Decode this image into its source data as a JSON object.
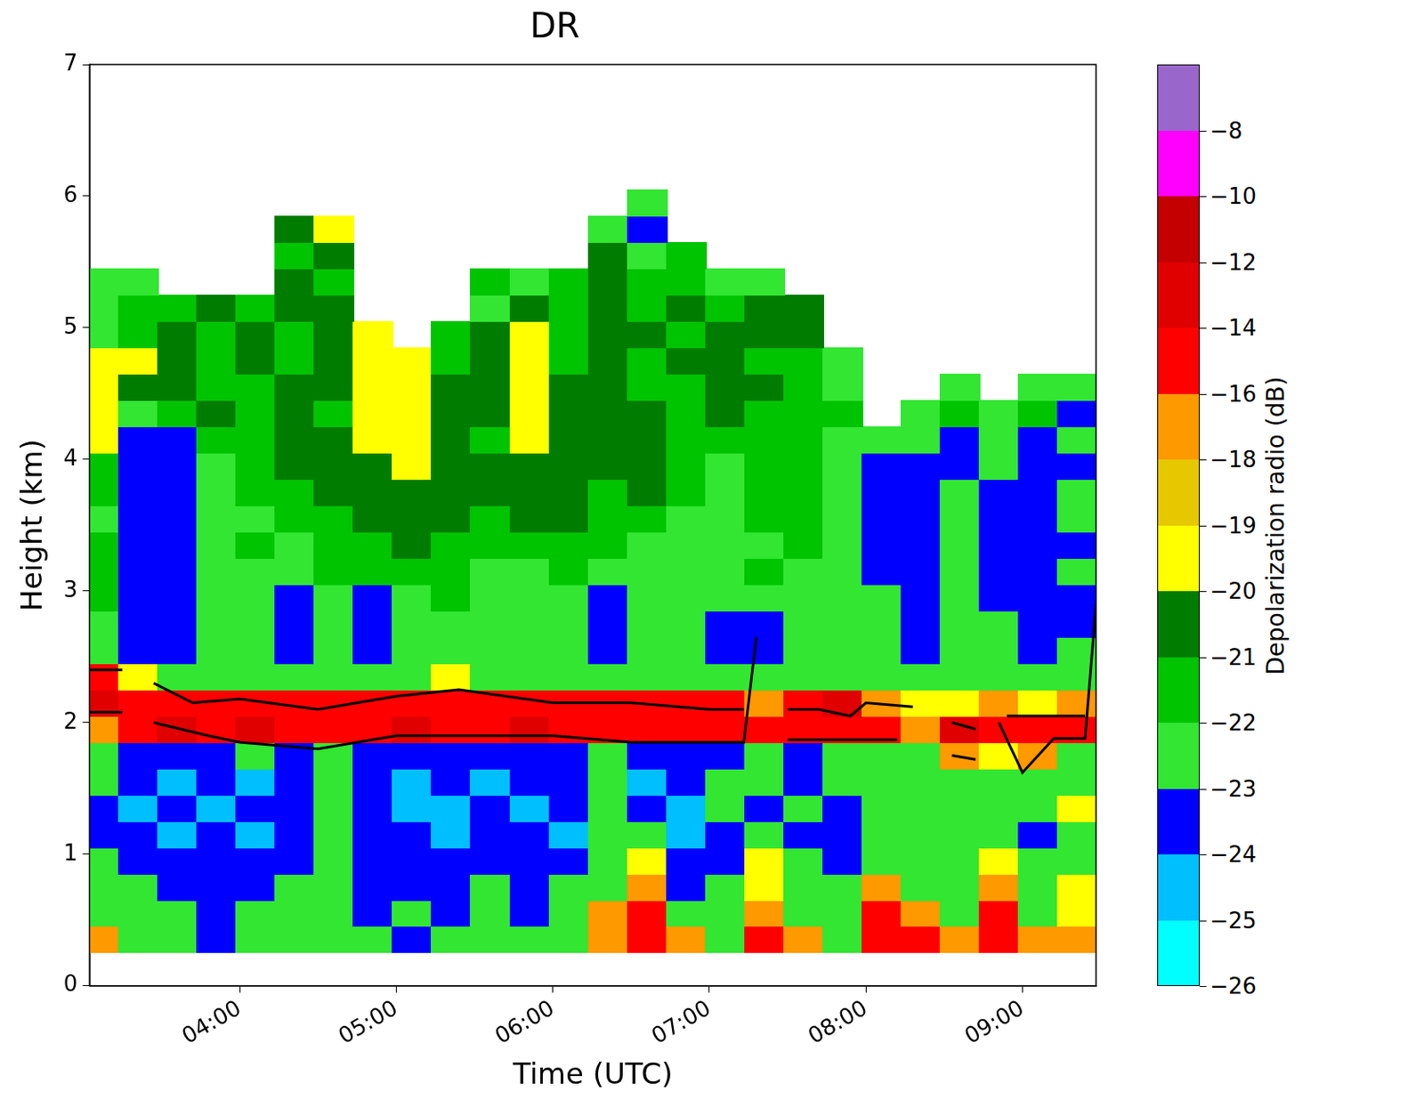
{
  "chart_data": {
    "type": "heatmap",
    "title": "DR",
    "x_label": "Time (UTC)",
    "y_label": "Height (km)",
    "xlim": [
      3.04,
      9.47
    ],
    "xticks": [
      {
        "value": 4,
        "label": "04:00"
      },
      {
        "value": 5,
        "label": "05:00"
      },
      {
        "value": 6,
        "label": "06:00"
      },
      {
        "value": 7,
        "label": "07:00"
      },
      {
        "value": 8,
        "label": "08:00"
      },
      {
        "value": 9,
        "label": "09:00"
      }
    ],
    "ylim": [
      0,
      7
    ],
    "yticks": [
      0,
      1,
      2,
      3,
      4,
      5,
      6,
      7
    ],
    "grid": false,
    "x": [
      3.1,
      3.35,
      3.6,
      3.85,
      4.1,
      4.35,
      4.6,
      4.85,
      5.1,
      5.35,
      5.6,
      5.85,
      6.1,
      6.35,
      6.6,
      6.85,
      7.1,
      7.35,
      7.6,
      7.85,
      8.1,
      8.35,
      8.6,
      8.85,
      9.1,
      9.35
    ],
    "y": [
      0.35,
      0.55,
      0.75,
      0.95,
      1.15,
      1.35,
      1.55,
      1.75,
      1.95,
      2.15,
      2.35,
      2.55,
      2.75,
      2.95,
      3.15,
      3.35,
      3.55,
      3.75,
      3.95,
      4.15,
      4.35,
      4.55,
      4.75,
      4.95,
      5.15,
      5.35,
      5.55,
      5.75,
      5.95
    ],
    "z": [
      [
        -17,
        -22.5,
        -22.5,
        -23.5,
        -22.5,
        -22.5,
        -22.5,
        -22.5,
        -23.5,
        -22.5,
        -22.5,
        -22.5,
        -22.5,
        -17,
        -15,
        -17,
        -22.5,
        -15,
        -17,
        -22.5,
        -15,
        -15,
        -17,
        -15,
        -17,
        -17
      ],
      [
        -22.5,
        -22.5,
        -22.5,
        -23.5,
        -22.5,
        -22.5,
        -22.5,
        -23.5,
        -22.5,
        -23.5,
        -22.5,
        -23.5,
        -22.5,
        -17,
        -15,
        -22.5,
        -22.5,
        -17,
        -22.5,
        -22.5,
        -15,
        -17,
        -22.5,
        -15,
        -22.5,
        -19.5
      ],
      [
        -22.5,
        -22.5,
        -23.5,
        -23.5,
        -23.5,
        -22.5,
        -22.5,
        -23.5,
        -23.5,
        -23.5,
        -22.5,
        -23.5,
        -22.5,
        -22.5,
        -17,
        -23.5,
        -22.5,
        -19.5,
        -22.5,
        -22.5,
        -17,
        -22.5,
        -22.5,
        -17,
        -22.5,
        -19.5
      ],
      [
        -22.5,
        -23.5,
        -23.5,
        -23.5,
        -23.5,
        -23.5,
        -22.5,
        -23.5,
        -23.5,
        -23.5,
        -23.5,
        -23.5,
        -23.5,
        -22.5,
        -19.5,
        -23.5,
        -23.5,
        -19.5,
        -22.5,
        -23.5,
        -22.5,
        -22.5,
        -22.5,
        -19.5,
        -22.5,
        -22.5
      ],
      [
        -23.5,
        -23.5,
        -24.5,
        -23.5,
        -24.5,
        -23.5,
        -22.5,
        -23.5,
        -23.5,
        -24.5,
        -23.5,
        -23.5,
        -24.5,
        -22.5,
        -22.5,
        -24.5,
        -23.5,
        -22.5,
        -23.5,
        -23.5,
        -22.5,
        -22.5,
        -22.5,
        -22.5,
        -23.5,
        -22.5
      ],
      [
        -23.5,
        -24.5,
        -23.5,
        -24.5,
        -23.5,
        -23.5,
        -22.5,
        -23.5,
        -24.5,
        -24.5,
        -23.5,
        -24.5,
        -23.5,
        -22.5,
        -23.5,
        -24.5,
        -22.5,
        -23.5,
        -22.5,
        -23.5,
        -22.5,
        -22.5,
        -22.5,
        -22.5,
        -22.5,
        -19.5
      ],
      [
        -22.5,
        -23.5,
        -24.5,
        -23.5,
        -24.5,
        -23.5,
        -22.5,
        -23.5,
        -24.5,
        -23.5,
        -24.5,
        -23.5,
        -23.5,
        -22.5,
        -24.5,
        -23.5,
        -22.5,
        -22.5,
        -23.5,
        -22.5,
        -22.5,
        -22.5,
        -22.5,
        -22.5,
        -22.5,
        -22.5
      ],
      [
        -22.5,
        -23.5,
        -23.5,
        -23.5,
        -22.5,
        -23.5,
        -22.5,
        -23.5,
        -23.5,
        -23.5,
        -23.5,
        -23.5,
        -23.5,
        -22.5,
        -23.5,
        -23.5,
        -23.5,
        -22.5,
        -23.5,
        -22.5,
        -22.5,
        -22.5,
        -17,
        -19.5,
        -17,
        -22.5
      ],
      [
        -17,
        -15,
        -13,
        -15,
        -13,
        -15,
        -15,
        -15,
        -13,
        -15,
        -15,
        -13,
        -15,
        -15,
        -15,
        -15,
        -15,
        -15,
        -15,
        -15,
        -15,
        -17,
        -13,
        -15,
        -15,
        -15
      ],
      [
        -13,
        -15,
        -15,
        -15,
        -15,
        -15,
        -15,
        -15,
        -15,
        -15,
        -15,
        -15,
        -15,
        -15,
        -15,
        -15,
        -15,
        -17,
        -15,
        -13,
        -17,
        -19.5,
        -19.5,
        -17,
        -19.5,
        -17
      ],
      [
        -15,
        -19.5,
        -22.5,
        -22.5,
        -22.5,
        -22.5,
        -22.5,
        -22.5,
        -22.5,
        -19.5,
        -22.5,
        -22.5,
        -22.5,
        -22.5,
        -22.5,
        -22.5,
        -22.5,
        -22.5,
        -22.5,
        -22.5,
        -22.5,
        -22.5,
        -22.5,
        -22.5,
        -22.5,
        -22.5
      ],
      [
        -22.5,
        -23.5,
        -23.5,
        -22.5,
        -22.5,
        -23.5,
        -22.5,
        -23.5,
        -22.5,
        -22.5,
        -22.5,
        -22.5,
        -22.5,
        -23.5,
        -22.5,
        -22.5,
        -23.5,
        -23.5,
        -22.5,
        -22.5,
        -22.5,
        -23.5,
        -22.5,
        -22.5,
        -23.5,
        -22.5
      ],
      [
        -22.5,
        -23.5,
        -23.5,
        -22.5,
        -22.5,
        -23.5,
        -22.5,
        -23.5,
        -22.5,
        -22.5,
        -22.5,
        -22.5,
        -22.5,
        -23.5,
        -22.5,
        -22.5,
        -23.5,
        -23.5,
        -22.5,
        -22.5,
        -22.5,
        -23.5,
        -22.5,
        -22.5,
        -23.5,
        -23.5
      ],
      [
        -21.5,
        -23.5,
        -23.5,
        -22.5,
        -22.5,
        -23.5,
        -22.5,
        -23.5,
        -22.5,
        -21.5,
        -22.5,
        -22.5,
        -22.5,
        -23.5,
        -22.5,
        -22.5,
        -22.5,
        -22.5,
        -22.5,
        -22.5,
        -22.5,
        -23.5,
        -22.5,
        -23.5,
        -23.5,
        -23.5
      ],
      [
        -21.5,
        -23.5,
        -23.5,
        -22.5,
        -22.5,
        -22.5,
        -21.5,
        -21.5,
        -21.5,
        -21.5,
        -22.5,
        -22.5,
        -21.5,
        -22.5,
        -22.5,
        -22.5,
        -22.5,
        -21.5,
        -22.5,
        -22.5,
        -23.5,
        -23.5,
        -22.5,
        -23.5,
        -23.5,
        -22.5
      ],
      [
        -21.5,
        -23.5,
        -23.5,
        -22.5,
        -21.5,
        -22.5,
        -21.5,
        -21.5,
        -20.5,
        -21.5,
        -21.5,
        -21.5,
        -21.5,
        -21.5,
        -22.5,
        -22.5,
        -22.5,
        -22.5,
        -21.5,
        -22.5,
        -23.5,
        -23.5,
        -22.5,
        -23.5,
        -23.5,
        -23.5
      ],
      [
        -22.5,
        -23.5,
        -23.5,
        -22.5,
        -22.5,
        -21.5,
        -21.5,
        -20.5,
        -20.5,
        -20.5,
        -21.5,
        -20.5,
        -20.5,
        -21.5,
        -21.5,
        -22.5,
        -22.5,
        -21.5,
        -21.5,
        -22.5,
        -23.5,
        -23.5,
        -22.5,
        -23.5,
        -23.5,
        -22.5
      ],
      [
        -21.5,
        -23.5,
        -23.5,
        -22.5,
        -21.5,
        -21.5,
        -20.5,
        -20.5,
        -20.5,
        -20.5,
        -20.5,
        -20.5,
        -20.5,
        -21.5,
        -20.5,
        -21.5,
        -22.5,
        -21.5,
        -21.5,
        -22.5,
        -23.5,
        -23.5,
        -22.5,
        -23.5,
        -23.5,
        -22.5
      ],
      [
        -21.5,
        -23.5,
        -23.5,
        -22.5,
        -21.5,
        -20.5,
        -20.5,
        -20.5,
        -19.5,
        -20.5,
        -20.5,
        -20.5,
        -20.5,
        -20.5,
        -20.5,
        -21.5,
        -22.5,
        -21.5,
        -21.5,
        -22.5,
        -23.5,
        -23.5,
        -23.5,
        -22.5,
        -23.5,
        -23.5
      ],
      [
        -19.5,
        -23.5,
        -23.5,
        -21.5,
        -21.5,
        -20.5,
        -20.5,
        -19.5,
        -19.5,
        -20.5,
        -21.5,
        -19.5,
        -20.5,
        -20.5,
        -20.5,
        -21.5,
        -21.5,
        -21.5,
        -21.5,
        -22.5,
        -22.5,
        -22.5,
        -23.5,
        -22.5,
        -23.5,
        -22.5
      ],
      [
        -19.5,
        -22.5,
        -21.5,
        -20.5,
        -21.5,
        -20.5,
        -21.5,
        -19.5,
        -19.5,
        -20.5,
        -20.5,
        -19.5,
        -20.5,
        -20.5,
        -20.5,
        -21.5,
        -20.5,
        -21.5,
        -21.5,
        -21.5,
        null,
        -22.5,
        -21.5,
        -22.5,
        -21.5,
        -23.5
      ],
      [
        -19.5,
        -20.5,
        -20.5,
        -21.5,
        -21.5,
        -20.5,
        -20.5,
        -19.5,
        -19.5,
        -20.5,
        -20.5,
        -19.5,
        -20.5,
        -20.5,
        -21.5,
        -21.5,
        -20.5,
        -20.5,
        -21.5,
        -22.5,
        null,
        null,
        -22.5,
        null,
        -22.5,
        -22.5
      ],
      [
        -19.5,
        -19.5,
        -20.5,
        -21.5,
        -20.5,
        -21.5,
        -20.5,
        -19.5,
        -19.5,
        -21.5,
        -20.5,
        -19.5,
        -21.5,
        -20.5,
        -21.5,
        -20.5,
        -20.5,
        -21.5,
        -21.5,
        -22.5,
        null,
        null,
        null,
        null,
        null,
        null
      ],
      [
        -22.5,
        -21.5,
        -20.5,
        -21.5,
        -20.5,
        -21.5,
        -20.5,
        -19.5,
        null,
        -21.5,
        -20.5,
        -19.5,
        -21.5,
        -20.5,
        -20.5,
        -21.5,
        -20.5,
        -20.5,
        -20.5,
        null,
        null,
        null,
        null,
        null,
        null,
        null
      ],
      [
        -22.5,
        -21.5,
        -21.5,
        -20.5,
        -21.5,
        -20.5,
        -20.5,
        null,
        null,
        null,
        -22.5,
        -20.5,
        -21.5,
        -20.5,
        -21.5,
        -20.5,
        -21.5,
        -20.5,
        -20.5,
        null,
        null,
        null,
        null,
        null,
        null,
        null
      ],
      [
        -22.5,
        -22.5,
        null,
        null,
        null,
        -20.5,
        -21.5,
        null,
        null,
        null,
        -21.5,
        -22.5,
        -21.5,
        -20.5,
        -21.5,
        -21.5,
        -22.5,
        -22.5,
        null,
        null,
        null,
        null,
        null,
        null,
        null,
        null
      ],
      [
        null,
        null,
        null,
        null,
        null,
        -21.5,
        -20.5,
        null,
        null,
        null,
        null,
        null,
        null,
        -20.5,
        -22.5,
        -21.5,
        null,
        null,
        null,
        null,
        null,
        null,
        null,
        null,
        null,
        null
      ],
      [
        null,
        null,
        null,
        null,
        null,
        -20.5,
        -19.5,
        null,
        null,
        null,
        null,
        null,
        null,
        -22.5,
        -23.5,
        null,
        null,
        null,
        null,
        null,
        null,
        null,
        null,
        null,
        null,
        null
      ],
      [
        null,
        null,
        null,
        null,
        null,
        null,
        null,
        null,
        null,
        null,
        null,
        null,
        null,
        null,
        -22.5,
        null,
        null,
        null,
        null,
        null,
        null,
        null,
        null,
        null,
        null,
        null
      ]
    ],
    "colorbar": {
      "label": "Depolarization radio (dB)",
      "levels": [
        -26,
        -25,
        -24,
        -23,
        -22,
        -21,
        -20,
        -19,
        -18,
        -16,
        -14,
        -12,
        -10,
        -8,
        -6
      ],
      "colors": [
        "#00ffff",
        "#00bfff",
        "#0000ff",
        "#32e632",
        "#00c400",
        "#007d00",
        "#ffff00",
        "#e6c800",
        "#ff9900",
        "#ff0000",
        "#e00000",
        "#c40000",
        "#ff00ff",
        "#9966cc"
      ],
      "ticks": [
        {
          "value": -26,
          "label": "−26"
        },
        {
          "value": -25,
          "label": "−25"
        },
        {
          "value": -24,
          "label": "−24"
        },
        {
          "value": -23,
          "label": "−23"
        },
        {
          "value": -22,
          "label": "−22"
        },
        {
          "value": -21,
          "label": "−21"
        },
        {
          "value": -20,
          "label": "−20"
        },
        {
          "value": -19,
          "label": "−19"
        },
        {
          "value": -18,
          "label": "−18"
        },
        {
          "value": -16,
          "label": "−16"
        },
        {
          "value": -14,
          "label": "−14"
        },
        {
          "value": -12,
          "label": "−12"
        },
        {
          "value": -10,
          "label": "−10"
        },
        {
          "value": -8,
          "label": "−8"
        }
      ]
    },
    "contour_lines": [
      {
        "color": "#000000",
        "line_style": "solid",
        "x": [
          3.04,
          3.25,
          3.35,
          3.45,
          3.7,
          4.0,
          4.5,
          5.0,
          5.4,
          6.0,
          6.5,
          7.0,
          7.22,
          7.35,
          7.5,
          7.7,
          7.9,
          8.0,
          8.3,
          8.42,
          8.55,
          8.7,
          8.8,
          8.9,
          9.2,
          9.4
        ],
        "values": [
          2.4,
          2.4,
          null,
          2.3,
          2.15,
          2.18,
          2.1,
          2.2,
          2.25,
          2.15,
          2.15,
          2.1,
          2.1,
          null,
          2.1,
          2.1,
          2.05,
          2.15,
          2.12,
          null,
          2.0,
          1.95,
          null,
          2.05,
          2.05,
          2.05
        ]
      },
      {
        "color": "#000000",
        "line_style": "solid",
        "x": [
          3.04,
          3.25,
          3.35,
          3.45,
          3.8,
          4.0,
          4.5,
          5.0,
          5.5,
          6.0,
          6.5,
          7.0,
          7.22,
          7.3,
          7.4,
          7.5,
          7.8,
          8.2,
          8.4,
          8.55,
          8.7,
          8.78,
          8.85,
          9.0,
          9.2,
          9.4,
          9.47
        ],
        "values": [
          2.08,
          2.08,
          null,
          2.0,
          1.9,
          1.85,
          1.8,
          1.9,
          1.9,
          1.9,
          1.85,
          1.85,
          1.85,
          2.65,
          null,
          1.87,
          1.87,
          1.87,
          null,
          1.75,
          1.72,
          null,
          2.0,
          1.62,
          1.88,
          1.88,
          2.9
        ]
      }
    ]
  }
}
